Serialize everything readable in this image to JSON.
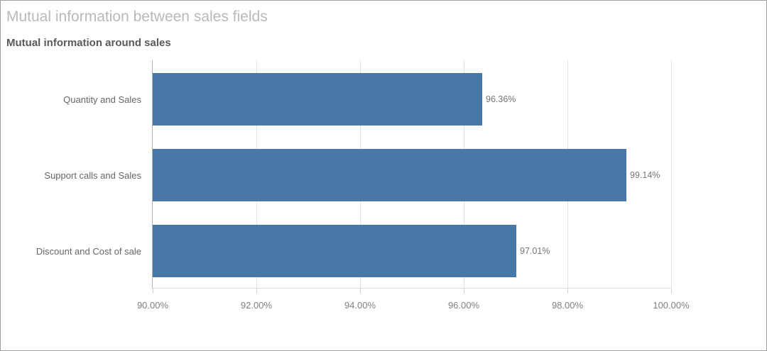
{
  "header": {
    "title": "Mutual information between sales fields",
    "subtitle": "Mutual information around sales"
  },
  "chart_data": {
    "type": "bar",
    "orientation": "horizontal",
    "title": "Mutual information between sales fields",
    "subtitle": "Mutual information around sales",
    "categories": [
      "Quantity and Sales",
      "Support calls and Sales",
      "Discount and Cost of sale"
    ],
    "values": [
      96.36,
      99.14,
      97.01
    ],
    "value_labels": [
      "96.36%",
      "99.14%",
      "97.01%"
    ],
    "x_axis": {
      "min": 90,
      "max": 100,
      "tick_values": [
        90,
        92,
        94,
        96,
        98,
        100
      ],
      "tick_labels": [
        "90.00%",
        "92.00%",
        "94.00%",
        "96.00%",
        "98.00%",
        "100.00%"
      ]
    },
    "grid": true,
    "legend": false,
    "colors": {
      "bar": "#4878a8",
      "gridline": "#e2e2e2",
      "axis_line": "#b3b3b3",
      "value_label_text": "#757575",
      "tick_label_text": "#808080"
    }
  }
}
